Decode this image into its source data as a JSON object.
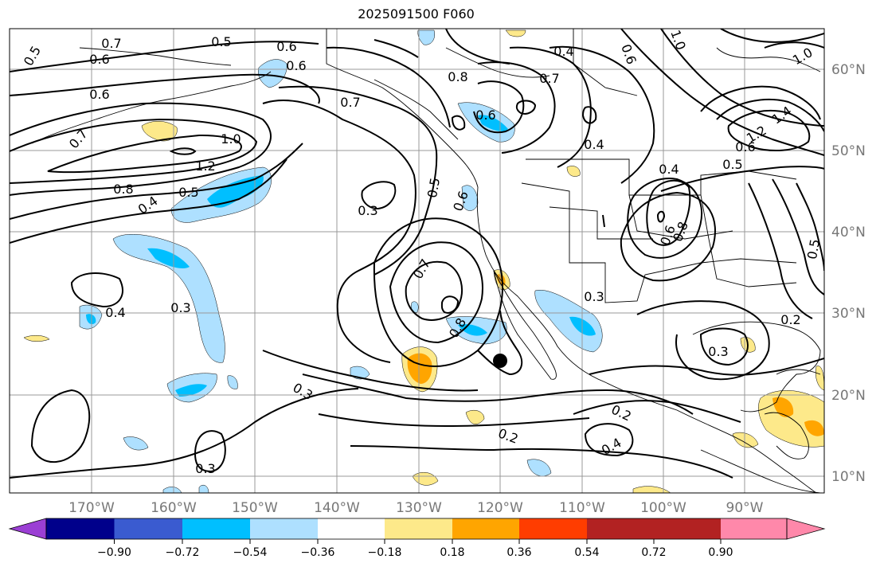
{
  "title": "2025091500 F060",
  "lat_labels": [
    "60°N",
    "50°N",
    "40°N",
    "30°N",
    "20°N",
    "10°N"
  ],
  "lon_labels": [
    "170°W",
    "160°W",
    "150°W",
    "140°W",
    "130°W",
    "120°W",
    "110°W",
    "100°W",
    "90°W"
  ],
  "colorbar": {
    "ticks": [
      "−0.90",
      "−0.72",
      "−0.54",
      "−0.36",
      "−0.18",
      "0.18",
      "0.36",
      "0.54",
      "0.72",
      "0.90"
    ],
    "colors": [
      "#9b3fd4",
      "#00008b",
      "#3a5bd0",
      "#00bfff",
      "#aee0ff",
      "#ffffff",
      "#fde98a",
      "#ffa500",
      "#ff3d00",
      "#b22222",
      "#ff88aa"
    ]
  },
  "contour_labels": [
    "0.5",
    "0.7",
    "0.6",
    "0.5",
    "0.6",
    "0.6",
    "0.6",
    "0.7",
    "0.4",
    "0.8",
    "0.7",
    "0.6",
    "0.6",
    "1.0",
    "0.7",
    "1.0",
    "1.2",
    "0.8",
    "0.5",
    "0.4",
    "0.3",
    "0.3",
    "0.5",
    "0.6",
    "0.4",
    "0.4",
    "0.7",
    "0.8",
    "0.3",
    "0.4",
    "0.3",
    "0.3",
    "0.2",
    "0.4",
    "0.2",
    "0.3",
    "0.2",
    "1.0",
    "0.6",
    "1.2",
    "1.4",
    "0.6",
    "0.8",
    "0.5",
    "0.5"
  ],
  "marker": "storm-center"
}
